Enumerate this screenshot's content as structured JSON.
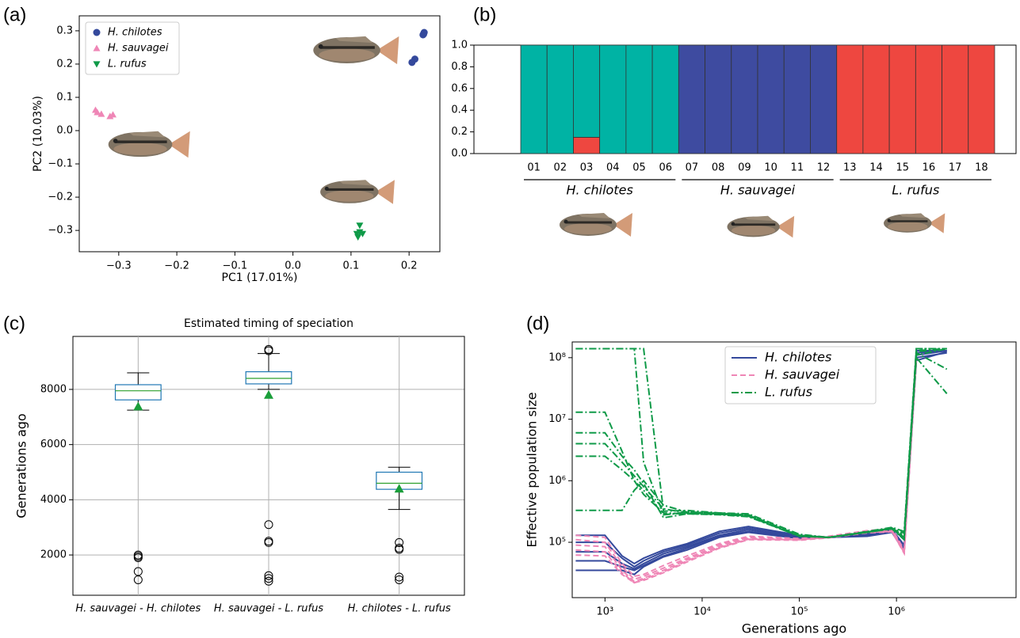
{
  "chart_data": [
    {
      "type": "scatter",
      "panel_label": "(a)",
      "xlabel": "PC1 (17.01%)",
      "ylabel": "PC2 (10.03%)",
      "xlim": [
        -0.368,
        0.253
      ],
      "ylim": [
        -0.364,
        0.345
      ],
      "xticks": [
        {
          "value": -0.3,
          "label": "−0.3"
        },
        {
          "value": -0.2,
          "label": "−0.2"
        },
        {
          "value": -0.1,
          "label": "−0.1"
        },
        {
          "value": 0,
          "label": "0.0"
        },
        0.1,
        0.2
      ],
      "yticks": [
        {
          "value": -0.3,
          "label": "−0.3"
        },
        {
          "value": -0.2,
          "label": "−0.2"
        },
        {
          "value": -0.1,
          "label": "−0.1"
        },
        {
          "value": 0,
          "label": "0.0"
        },
        0.1,
        0.2,
        0.3
      ],
      "legend": "upper left",
      "series": [
        {
          "name": "H. chilotes",
          "color": "#34499c",
          "marker": "circle",
          "x": [
            0.225,
            0.226,
            0.224,
            0.21,
            0.205
          ],
          "values": [
            0.29,
            0.295,
            0.288,
            0.215,
            0.205
          ]
        },
        {
          "name": "H. sauvagei",
          "color": "#ef86b6",
          "marker": "triangle-up",
          "x": [
            -0.34,
            -0.337,
            -0.33,
            -0.315,
            -0.31
          ],
          "values": [
            0.062,
            0.055,
            0.05,
            0.043,
            0.048
          ]
        },
        {
          "name": "L. rufus",
          "color": "#0f9a48",
          "marker": "triangle-down",
          "x": [
            0.115,
            0.115,
            0.11,
            0.12,
            0.112
          ],
          "values": [
            -0.285,
            -0.305,
            -0.31,
            -0.31,
            -0.32
          ]
        }
      ]
    },
    {
      "type": "bar",
      "stacked": true,
      "panel_label": "(b)",
      "categories": [
        "01",
        "02",
        "03",
        "04",
        "05",
        "06",
        "07",
        "08",
        "09",
        "10",
        "11",
        "12",
        "13",
        "14",
        "15",
        "16",
        "17",
        "18"
      ],
      "ylim": [
        0,
        1
      ],
      "yticks": [
        {
          "value": 0,
          "label": "0.0"
        },
        0.2,
        0.4,
        0.6,
        0.8,
        {
          "value": 1,
          "label": "1.0"
        }
      ],
      "groups": [
        "H. chilotes",
        "H. sauvagei",
        "L. rufus"
      ],
      "series": [
        {
          "color": "#ee4740",
          "values": [
            0,
            0,
            0.15,
            0,
            0,
            0,
            0,
            0,
            0,
            0,
            0,
            0,
            1,
            1,
            1,
            1,
            1,
            1
          ]
        },
        {
          "color": "#00b3a4",
          "values": [
            1,
            1,
            0.85,
            1,
            1,
            1,
            0,
            0,
            0,
            0,
            0,
            0,
            0,
            0,
            0,
            0,
            0,
            0
          ]
        },
        {
          "color": "#3e4ba0",
          "values": [
            0,
            0,
            0,
            0,
            0,
            0,
            1,
            1,
            1,
            1,
            1,
            1,
            0,
            0,
            0,
            0,
            0,
            0
          ]
        }
      ]
    },
    {
      "type": "box",
      "panel_label": "(c)",
      "title": "Estimated timing of speciation",
      "ylabel": "Generations ago",
      "categories": [
        "H. sauvagei - H. chilotes",
        "H. sauvagei - L. rufus",
        "H. chilotes - L. rufus"
      ],
      "ylim": [
        540,
        9920
      ],
      "yticks": [
        2000,
        4000,
        6000,
        8000
      ],
      "grid": true,
      "box_color": "#1f77b4",
      "median_color": "#2ca02c",
      "mean_color": "#1a9e3a",
      "boxes": [
        {
          "whislo": 7250,
          "q1": 7620,
          "med": 7950,
          "q3": 8170,
          "whishi": 8600,
          "mean": 7380,
          "fliers": [
            2000,
            1950,
            1900,
            1400,
            1100
          ]
        },
        {
          "whislo": 8000,
          "q1": 8200,
          "med": 8400,
          "q3": 8640,
          "whishi": 9300,
          "mean": 7800,
          "fliers": [
            9450,
            9400,
            3100,
            2500,
            2450,
            1250,
            1150,
            1050
          ]
        },
        {
          "whislo": 3650,
          "q1": 4380,
          "med": 4600,
          "q3": 5000,
          "whishi": 5180,
          "mean": 4400,
          "fliers": [
            2450,
            2250,
            2200,
            1200,
            1100
          ]
        }
      ]
    },
    {
      "type": "line",
      "panel_label": "(d)",
      "xlabel": "Generations ago",
      "ylabel": "Effective population size",
      "xscale": "log",
      "yscale": "log",
      "xlim": [
        460,
        17000000
      ],
      "ylim": [
        12600,
        180000000
      ],
      "xticks": [
        {
          "value": 1000,
          "label": "10³"
        },
        {
          "value": 10000,
          "label": "10⁴"
        },
        {
          "value": 100000,
          "label": "10⁵"
        },
        {
          "value": 1000000,
          "label": "10⁶"
        }
      ],
      "yticks": [
        {
          "value": 100000,
          "label": "10⁵"
        },
        {
          "value": 1000000,
          "label": "10⁶"
        },
        {
          "value": 10000000,
          "label": "10⁷"
        },
        {
          "value": 100000000,
          "label": "10⁸"
        }
      ],
      "legend": "upper center",
      "x": [
        500,
        1000,
        1500,
        2000,
        2500,
        4000,
        7000,
        15000,
        30000,
        100000,
        200000,
        500000,
        900000,
        1200000,
        1600000,
        3300000
      ],
      "series": [
        {
          "name": "H. chilotes",
          "color": "#34499c",
          "dash": "solid",
          "lines": [
            [
              130000,
              130000,
              60000,
              45000,
              55000,
              75000,
              95000,
              150000,
              180000,
              130000,
              120000,
              140000,
              170000,
              110000,
              130000000,
              130000000
            ],
            [
              100000,
              100000,
              55000,
              40000,
              50000,
              70000,
              90000,
              140000,
              170000,
              125000,
              120000,
              135000,
              160000,
              90000,
              120000000,
              130000000
            ],
            [
              70000,
              70000,
              45000,
              37000,
              45000,
              65000,
              85000,
              130000,
              160000,
              120000,
              120000,
              130000,
              160000,
              80000,
              110000000,
              130000000
            ],
            [
              50000,
              50000,
              40000,
              35000,
              42000,
              60000,
              80000,
              125000,
              150000,
              118000,
              120000,
              128000,
              150000,
              75000,
              100000000,
              120000000
            ],
            [
              35000,
              35000,
              35000,
              30000,
              40000,
              58000,
              75000,
              120000,
              145000,
              115000,
              120000,
              125000,
              145000,
              70000,
              90000000,
              125000000
            ]
          ]
        },
        {
          "name": "H. sauvagei",
          "color": "#ef86b6",
          "dash": "dashed",
          "lines": [
            [
              130000,
              120000,
              45000,
              28000,
              30000,
              42000,
              60000,
              95000,
              125000,
              115000,
              125000,
              155000,
              165000,
              75000,
              100000000,
              null
            ],
            [
              110000,
              100000,
              40000,
              25000,
              28000,
              38000,
              55000,
              90000,
              120000,
              112000,
              122000,
              150000,
              160000,
              72000,
              98000000,
              null
            ],
            [
              90000,
              85000,
              35000,
              23000,
              26000,
              35000,
              52000,
              85000,
              115000,
              110000,
              120000,
              148000,
              155000,
              70000,
              95000000,
              null
            ],
            [
              75000,
              70000,
              32000,
              22000,
              25000,
              33000,
              50000,
              82000,
              112000,
              110000,
              120000,
              145000,
              150000,
              68000,
              100000000,
              null
            ],
            [
              62000,
              60000,
              30000,
              22000,
              24000,
              32000,
              48000,
              80000,
              110000,
              108000,
              118000,
              142000,
              148000,
              66000,
              97000000,
              null
            ]
          ]
        },
        {
          "name": "L. rufus",
          "color": "#0f9a48",
          "dash": "dashdot",
          "lines": [
            [
              140000000,
              140000000,
              140000000,
              140000000,
              140000000,
              320000,
              330000,
              300000,
              290000,
              135000,
              120000,
              150000,
              175000,
              150000,
              140000000,
              140000000
            ],
            [
              140000000,
              140000000,
              140000000,
              140000000,
              2000000,
              280000,
              310000,
              300000,
              280000,
              130000,
              120000,
              148000,
              170000,
              140000,
              140000000,
              140000000
            ],
            [
              13000000,
              13000000,
              3000000,
              1000000,
              700000,
              280000,
              300000,
              290000,
              270000,
              128000,
              120000,
              146000,
              168000,
              120000,
              120000000,
              65000000
            ],
            [
              6000000,
              6000000,
              2500000,
              1500000,
              900000,
              250000,
              290000,
              285000,
              265000,
              125000,
              120000,
              145000,
              165000,
              110000,
              100000000,
              26000000
            ],
            [
              4000000,
              4000000,
              2000000,
              1200000,
              800000,
              350000,
              300000,
              290000,
              270000,
              127000,
              120000,
              147000,
              168000,
              130000,
              130000000,
              140000000
            ],
            [
              2500000,
              2500000,
              1500000,
              1000000,
              600000,
              300000,
              290000,
              280000,
              260000,
              126000,
              120000,
              145000,
              166000,
              115000,
              110000000,
              140000000
            ],
            [
              330000,
              330000,
              330000,
              700000,
              1000000,
              400000,
              310000,
              295000,
              275000,
              128000,
              120000,
              146000,
              170000,
              125000,
              125000000,
              140000000
            ]
          ]
        }
      ]
    }
  ]
}
